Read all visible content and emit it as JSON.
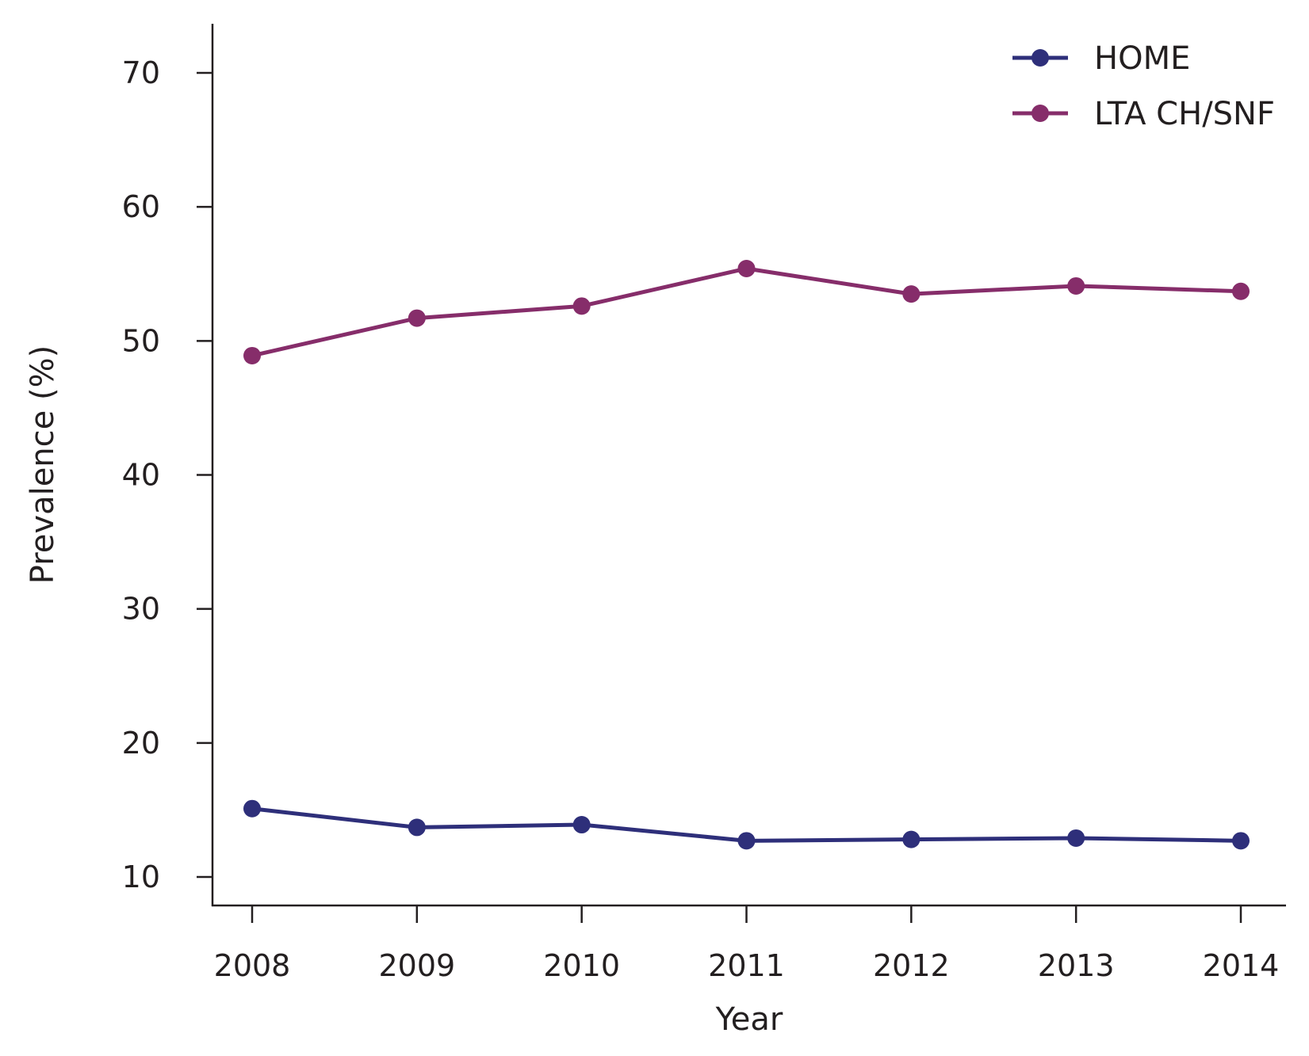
{
  "chart_data": {
    "type": "line",
    "xlabel": "Year",
    "ylabel": "Prevalence (%)",
    "categories": [
      "2008",
      "2009",
      "2010",
      "2011",
      "2012",
      "2013",
      "2014"
    ],
    "ylim": [
      7.8,
      73.6
    ],
    "yticks": [
      10,
      20,
      30,
      40,
      50,
      60,
      70
    ],
    "legend_position": "top-right",
    "grid": false,
    "series": [
      {
        "name": "HOME",
        "color": "#2e2f7a",
        "values": [
          15.1,
          13.7,
          13.9,
          12.7,
          12.8,
          12.9,
          12.7
        ]
      },
      {
        "name": "LTA CH/SNF",
        "color": "#862d6a",
        "values": [
          48.9,
          51.7,
          52.6,
          55.4,
          53.5,
          54.1,
          53.7
        ]
      }
    ]
  }
}
